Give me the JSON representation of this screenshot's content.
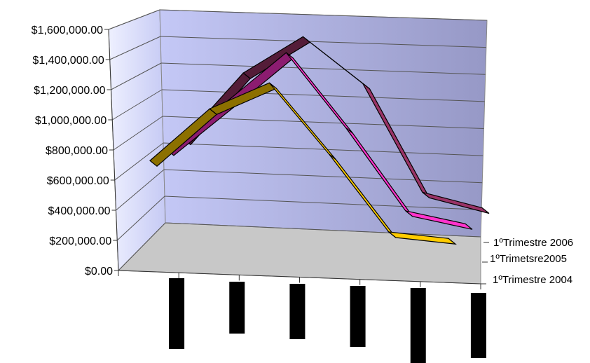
{
  "chart_data": {
    "type": "line",
    "render": "3d",
    "title": "",
    "xlabel": "",
    "ylabel": "",
    "ylim": [
      0,
      1600000
    ],
    "y_ticks": [
      {
        "value": 0,
        "label": "$0.00"
      },
      {
        "value": 200000,
        "label": "$200,000.00"
      },
      {
        "value": 400000,
        "label": "$400,000.00"
      },
      {
        "value": 600000,
        "label": "$600,000.00"
      },
      {
        "value": 800000,
        "label": "$800,000.00"
      },
      {
        "value": 1000000,
        "label": "$1,000,000.00"
      },
      {
        "value": 1200000,
        "label": "$1,200,000.00"
      },
      {
        "value": 1400000,
        "label": "$1,400,000.00"
      },
      {
        "value": 1600000,
        "label": "$1,600,000.00"
      }
    ],
    "grid": true,
    "categories": [
      "",
      "",
      "",
      "",
      "",
      ""
    ],
    "series": [
      {
        "name": "1ºTrimestre 2004",
        "color": "#FFCC00",
        "values": [
          750000,
          1150000,
          1350000,
          800000,
          200000,
          150000
        ]
      },
      {
        "name": "1ºTrimetsre2005",
        "color": "#FF33CC",
        "values": [
          790000,
          1160000,
          1540000,
          960000,
          320000,
          220000
        ]
      },
      {
        "name": "1ºTrimestre 2006",
        "color": "#993366",
        "values": [
          830000,
          1340000,
          1620000,
          1260000,
          420000,
          300000
        ]
      }
    ]
  }
}
